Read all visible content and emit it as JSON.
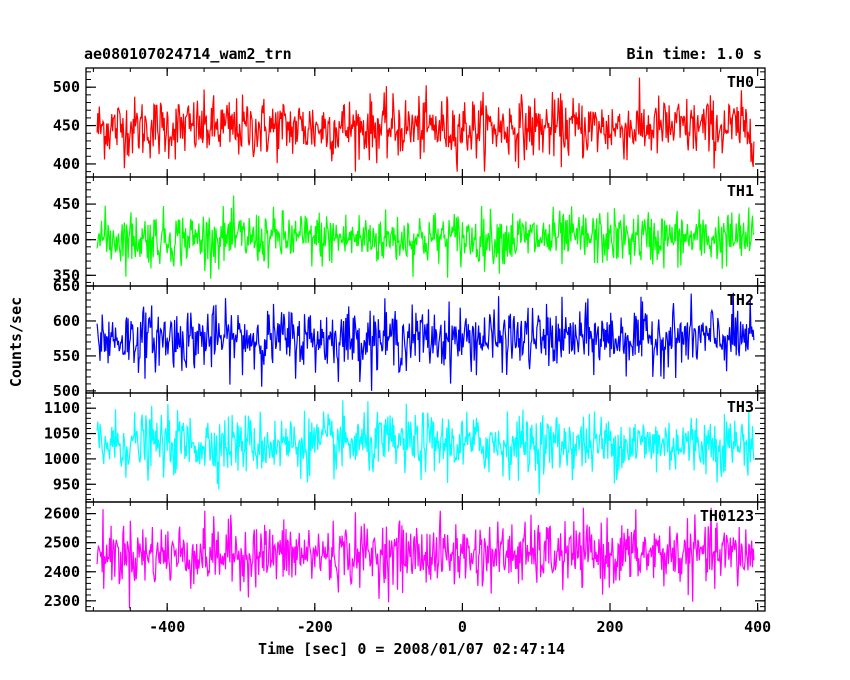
{
  "header": {
    "title": "ae080107024714_wam2_trn",
    "bin_time": "Bin time: 1.0 s"
  },
  "chart_data": {
    "type": "line",
    "xlabel": "Time [sec] 0 = 2008/01/07 02:47:14",
    "ylabel": "Counts/sec",
    "xlim": [
      -510,
      410
    ],
    "x_ticks": [
      -400,
      -200,
      0,
      200,
      400
    ],
    "x_range": [
      -495,
      395
    ],
    "panels": [
      {
        "name": "TH0",
        "color": "#ff0000",
        "ylim": [
          383,
          525
        ],
        "y_ticks": [
          400,
          450,
          500
        ],
        "mean": 447,
        "sd": 20,
        "min": 390,
        "max": 523
      },
      {
        "name": "TH1",
        "color": "#00ff00",
        "ylim": [
          335,
          488
        ],
        "y_ticks": [
          350,
          400,
          450
        ],
        "mean": 402,
        "sd": 19,
        "min": 345,
        "max": 485
      },
      {
        "name": "TH2",
        "color": "#0000ff",
        "ylim": [
          497,
          650
        ],
        "y_ticks": [
          500,
          550,
          600,
          650
        ],
        "mean": 575,
        "sd": 22,
        "min": 500,
        "max": 648
      },
      {
        "name": "TH3",
        "color": "#00ffff",
        "ylim": [
          915,
          1130
        ],
        "y_ticks": [
          950,
          1000,
          1050,
          1100
        ],
        "mean": 1030,
        "sd": 30,
        "min": 925,
        "max": 1128
      },
      {
        "name": "TH0123",
        "color": "#ff00ff",
        "ylim": [
          2265,
          2640
        ],
        "y_ticks": [
          2300,
          2400,
          2500,
          2600
        ],
        "mean": 2460,
        "sd": 55,
        "min": 2270,
        "max": 2620
      }
    ]
  }
}
